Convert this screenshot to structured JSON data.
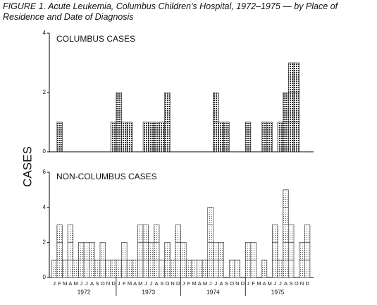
{
  "title": "FIGURE 1. Acute Leukemia, Columbus Children's Hospital, 1972–1975 — by Place of Residence and Date of Diagnosis",
  "y_label": "CASES",
  "years": [
    "1972",
    "1973",
    "1974",
    "1975"
  ],
  "chart_data": [
    {
      "type": "bar",
      "title": "COLUMBUS CASES",
      "color": "#444444",
      "values": [
        0,
        1,
        0,
        0,
        0,
        0,
        0,
        0,
        0,
        0,
        0,
        1,
        2,
        1,
        1,
        0,
        0,
        1,
        1,
        1,
        1,
        2,
        0,
        0,
        0,
        0,
        0,
        0,
        0,
        0,
        2,
        1,
        1,
        0,
        0,
        0,
        1,
        0,
        0,
        1,
        1,
        0,
        1,
        2,
        3,
        3,
        0,
        0
      ],
      "ylim": [
        0,
        4
      ],
      "yticks": [
        0,
        2,
        4
      ]
    },
    {
      "type": "bar",
      "title": "NON-COLUMBUS CASES",
      "color": "#999999",
      "categories": [
        "J",
        "F",
        "M",
        "A",
        "M",
        "J",
        "J",
        "A",
        "S",
        "O",
        "N",
        "D",
        "J",
        "F",
        "M",
        "A",
        "M",
        "J",
        "J",
        "A",
        "S",
        "O",
        "N",
        "D",
        "J",
        "F",
        "M",
        "A",
        "M",
        "J",
        "J",
        "A",
        "S",
        "O",
        "N",
        "D",
        "J",
        "F",
        "M",
        "A",
        "M",
        "J",
        "J",
        "A",
        "S",
        "O",
        "N",
        "D"
      ],
      "values": [
        1,
        3,
        1,
        3,
        1,
        2,
        2,
        2,
        1,
        2,
        1,
        1,
        1,
        2,
        1,
        1,
        3,
        3,
        2,
        3,
        1,
        2,
        1,
        3,
        2,
        1,
        1,
        1,
        1,
        4,
        2,
        2,
        0,
        1,
        1,
        0,
        2,
        2,
        0,
        1,
        0,
        3,
        1,
        5,
        3,
        0,
        2,
        3
      ],
      "ylim": [
        0,
        6
      ],
      "yticks": [
        0,
        2,
        4,
        6
      ]
    }
  ]
}
